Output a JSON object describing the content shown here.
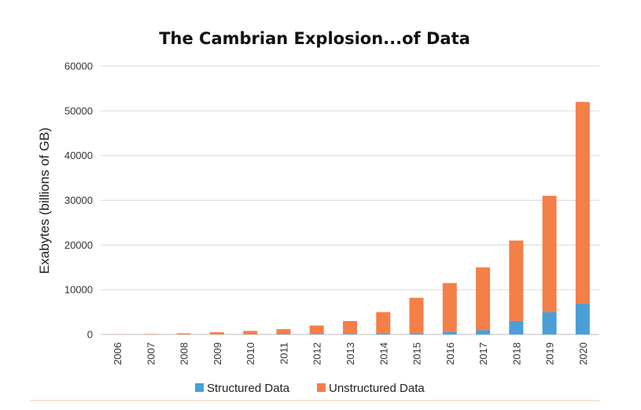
{
  "colors": {
    "structured": "#4a9fd8",
    "unstructured": "#f47f48"
  },
  "chart_data": {
    "type": "bar",
    "stacked": true,
    "title": "The Cambrian Explosion...of Data",
    "ylabel": "Exabytes (billions of GB)",
    "xlabel": "",
    "ylim": [
      0,
      60000
    ],
    "yticks": [
      "60000",
      "50000",
      "40000",
      "30000",
      "20000",
      "10000",
      "0"
    ],
    "grid": true,
    "legend_position": "bottom",
    "categories": [
      "2006",
      "2007",
      "2008",
      "2009",
      "2010",
      "2011",
      "2012",
      "2013",
      "2014",
      "2015",
      "2016",
      "2017",
      "2018",
      "2019",
      "2020"
    ],
    "series": [
      {
        "name": "Structured Data",
        "values": [
          0,
          0,
          20,
          30,
          50,
          80,
          120,
          150,
          200,
          300,
          600,
          1000,
          3000,
          5000,
          7000
        ]
      },
      {
        "name": "Unstructured Data",
        "values": [
          50,
          100,
          230,
          470,
          750,
          1120,
          1880,
          2850,
          4800,
          7900,
          10900,
          14000,
          18000,
          26000,
          45000
        ]
      }
    ]
  }
}
